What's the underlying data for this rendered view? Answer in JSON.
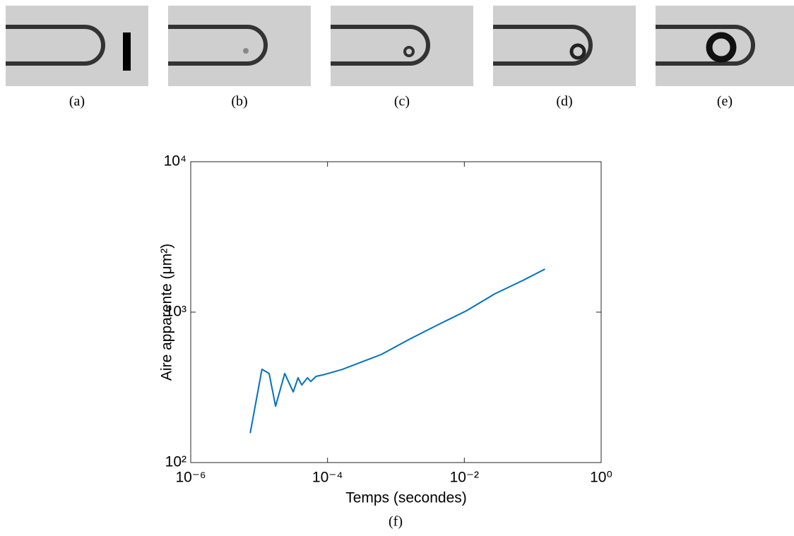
{
  "panels": [
    {
      "label": "(a)"
    },
    {
      "label": "(b)"
    },
    {
      "label": "(c)"
    },
    {
      "label": "(d)"
    },
    {
      "label": "(e)"
    }
  ],
  "chart_data": {
    "type": "line",
    "caption": "(f)",
    "x_label": "Temps (secondes)",
    "y_label": "Aire apparente (μm²)",
    "xscale": "log",
    "yscale": "log",
    "grid": false,
    "color": "#0072bd",
    "xlim": [
      1e-06,
      1
    ],
    "ylim": [
      100,
      10000
    ],
    "xticks": [
      {
        "value": 1e-06,
        "label": "10⁻⁶"
      },
      {
        "value": 0.0001,
        "label": "10⁻⁴"
      },
      {
        "value": 0.01,
        "label": "10⁻²"
      },
      {
        "value": 1,
        "label": "10⁰"
      }
    ],
    "yticks": [
      {
        "value": 100,
        "label": "10²"
      },
      {
        "value": 1000,
        "label": "10³"
      },
      {
        "value": 10000,
        "label": "10⁴"
      }
    ],
    "x": [
      7.4e-06,
      1.1e-05,
      1.4e-05,
      1.74e-05,
      2.37e-05,
      3.15e-05,
      3.7e-05,
      4.2e-05,
      5.1e-05,
      5.7e-05,
      6.8e-05,
      9.2e-05,
      0.000166,
      0.00061,
      0.0016,
      0.0041,
      0.0107,
      0.028,
      0.072,
      0.151
    ],
    "values": [
      157,
      417,
      391,
      237,
      391,
      295,
      366,
      328,
      366,
      346,
      374,
      386,
      417,
      523,
      663,
      823,
      1021,
      1325,
      1627,
      1933
    ]
  }
}
